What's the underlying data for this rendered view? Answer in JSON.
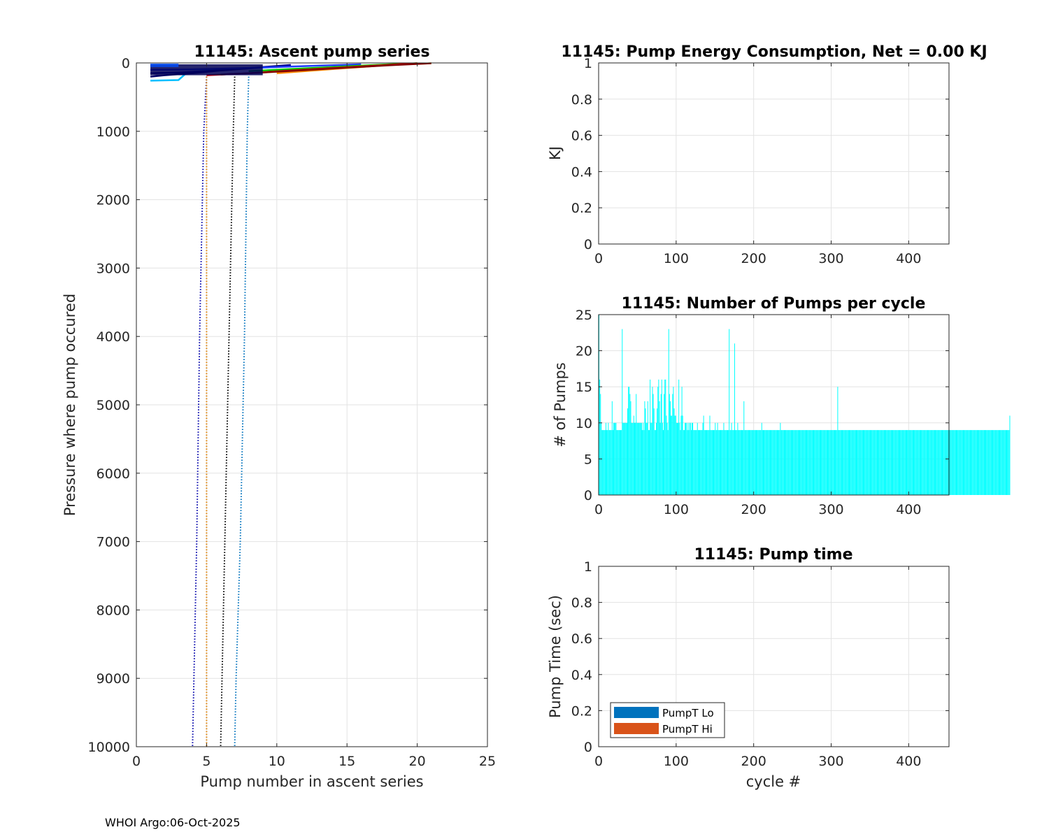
{
  "footer": "WHOI Argo:06-Oct-2025",
  "chart_data": [
    {
      "id": "ascent",
      "type": "line",
      "title": "11145: Ascent pump series",
      "xlabel": "Pump number in ascent series",
      "ylabel": "Pressure where pump occured",
      "xlim": [
        0,
        25
      ],
      "ylim": [
        0,
        10000
      ],
      "y_reversed": true,
      "xticks": [
        0,
        5,
        10,
        15,
        20,
        25
      ],
      "xtick_labels": [
        "0",
        "5",
        "10",
        "15",
        "20",
        "25"
      ],
      "yticks": [
        0,
        1000,
        2000,
        3000,
        4000,
        5000,
        6000,
        7000,
        8000,
        9000,
        10000
      ],
      "ytick_labels": [
        "0",
        "1000",
        "2000",
        "3000",
        "4000",
        "5000",
        "6000",
        "7000",
        "8000",
        "9000",
        "10000"
      ],
      "grid": true,
      "series": [
        {
          "name": "dotted-blue",
          "color": "#0000aa",
          "dash": true,
          "x": [
            5.0,
            4.8,
            4.5,
            4.3,
            4.1,
            4.0
          ],
          "y": [
            200,
            1000,
            4000,
            7000,
            9000,
            10000
          ]
        },
        {
          "name": "dotted-orange",
          "color": "#e08000",
          "dash": true,
          "x": [
            5.0,
            5.0,
            5.0
          ],
          "y": [
            200,
            5000,
            10000
          ]
        },
        {
          "name": "dotted-black",
          "color": "#000000",
          "dash": true,
          "x": [
            7.0,
            6.9,
            6.6,
            6.3,
            6.1,
            6.0
          ],
          "y": [
            200,
            1000,
            4000,
            7000,
            9000,
            10000
          ]
        },
        {
          "name": "dotted-lightblue",
          "color": "#0072bd",
          "dash": true,
          "x": [
            8.0,
            7.9,
            7.7,
            7.4,
            7.1,
            7.0
          ],
          "y": [
            200,
            1000,
            4000,
            7000,
            9000,
            10000
          ]
        },
        {
          "name": "profile-cyan",
          "color": "#00bfff",
          "dash": false,
          "x": [
            1,
            3,
            3.5,
            4,
            6,
            8,
            10
          ],
          "y": [
            260,
            250,
            160,
            130,
            100,
            80,
            60
          ]
        },
        {
          "name": "profile-navy-1",
          "color": "#000066",
          "dash": false,
          "x": [
            1,
            2,
            4,
            6,
            8,
            10
          ],
          "y": [
            200,
            180,
            150,
            110,
            80,
            50
          ]
        },
        {
          "name": "profile-navy-2",
          "color": "#00008b",
          "dash": false,
          "x": [
            1,
            3,
            5,
            7,
            9,
            11
          ],
          "y": [
            150,
            140,
            120,
            90,
            60,
            30
          ]
        },
        {
          "name": "profile-blue",
          "color": "#1e3cff",
          "dash": false,
          "x": [
            1,
            4,
            7,
            10,
            13,
            16
          ],
          "y": [
            100,
            95,
            80,
            60,
            40,
            20
          ]
        },
        {
          "name": "profile-green",
          "color": "#00c800",
          "dash": false,
          "x": [
            8,
            10,
            12,
            14,
            16,
            18,
            20
          ],
          "y": [
            120,
            100,
            80,
            60,
            40,
            20,
            5
          ]
        },
        {
          "name": "profile-yellow",
          "color": "#e6e600",
          "dash": false,
          "x": [
            9,
            11,
            13,
            15,
            17,
            19,
            21
          ],
          "y": [
            140,
            115,
            90,
            65,
            40,
            20,
            5
          ]
        },
        {
          "name": "profile-orange",
          "color": "#ff8c00",
          "dash": false,
          "x": [
            10,
            12,
            14,
            16,
            18,
            20
          ],
          "y": [
            150,
            120,
            90,
            60,
            30,
            5
          ]
        },
        {
          "name": "profile-red",
          "color": "#d20000",
          "dash": false,
          "x": [
            5,
            8,
            11,
            14,
            17,
            20
          ],
          "y": [
            180,
            150,
            110,
            75,
            40,
            5
          ]
        },
        {
          "name": "profile-darkred",
          "color": "#800000",
          "dash": false,
          "x": [
            6,
            9,
            12,
            15,
            18,
            21
          ],
          "y": [
            170,
            140,
            105,
            70,
            35,
            5
          ]
        }
      ]
    },
    {
      "id": "energy",
      "type": "line",
      "title": "11145: Pump Energy Consumption,  Net =   0.00 KJ",
      "xlabel": "",
      "ylabel": "KJ",
      "xlim": [
        0,
        452
      ],
      "ylim": [
        0,
        1
      ],
      "xticks": [
        0,
        100,
        200,
        300,
        400
      ],
      "xtick_labels": [
        "0",
        "100",
        "200",
        "300",
        "400"
      ],
      "yticks": [
        0,
        0.2,
        0.4,
        0.6,
        0.8,
        1
      ],
      "ytick_labels": [
        "0",
        "0.2",
        "0.4",
        "0.6",
        "0.8",
        "1"
      ],
      "grid": true,
      "series": []
    },
    {
      "id": "pumps",
      "type": "bar",
      "title": "11145: Number of Pumps per cycle",
      "xlabel": "",
      "ylabel": "# of Pumps",
      "xlim": [
        0,
        452
      ],
      "ylim": [
        0,
        25
      ],
      "xticks": [
        0,
        100,
        200,
        300,
        400
      ],
      "xtick_labels": [
        "0",
        "100",
        "200",
        "300",
        "400"
      ],
      "yticks": [
        0,
        5,
        10,
        15,
        20,
        25
      ],
      "ytick_labels": [
        "0",
        "5",
        "10",
        "15",
        "20",
        "25"
      ],
      "grid": true,
      "color": "#00ffff",
      "x_start": 1,
      "values": [
        25,
        16,
        14,
        10,
        9,
        9,
        9,
        9,
        9,
        10,
        9,
        9,
        10,
        9,
        9,
        9,
        9,
        13,
        9,
        10,
        10,
        10,
        10,
        9,
        9,
        9,
        9,
        9,
        9,
        9,
        23,
        10,
        10,
        10,
        10,
        10,
        10,
        12,
        15,
        15,
        14,
        13,
        10,
        10,
        10,
        11,
        10,
        10,
        14,
        10,
        10,
        10,
        10,
        10,
        10,
        10,
        9,
        10,
        9,
        13,
        12,
        10,
        10,
        13,
        9,
        9,
        16,
        10,
        10,
        15,
        14,
        12,
        9,
        9,
        10,
        12,
        15,
        16,
        13,
        10,
        14,
        16,
        10,
        9,
        14,
        16,
        16,
        11,
        10,
        9,
        23,
        14,
        13,
        11,
        11,
        14,
        15,
        12,
        11,
        11,
        10,
        10,
        10,
        16,
        10,
        9,
        11,
        15,
        11,
        9,
        9,
        10,
        10,
        10,
        9,
        10,
        9,
        10,
        10,
        9,
        10,
        10,
        9,
        9,
        9,
        9,
        9,
        10,
        9,
        9,
        9,
        9,
        9,
        9,
        10,
        11,
        9,
        9,
        9,
        9,
        9,
        9,
        9,
        11,
        9,
        9,
        9,
        9,
        9,
        9,
        10,
        9,
        9,
        10,
        9,
        9,
        9,
        9,
        9,
        9,
        9,
        10,
        9,
        9,
        9,
        9,
        9,
        9,
        23,
        9,
        9,
        10,
        9,
        9,
        9,
        21,
        9,
        9,
        9,
        10,
        9,
        9,
        9,
        9,
        9,
        9,
        9,
        13,
        9,
        9,
        9,
        9,
        9,
        9,
        9,
        9,
        9,
        9,
        9,
        9,
        9,
        9,
        9,
        9,
        9,
        9,
        9,
        9,
        9,
        9,
        10,
        9,
        9,
        9,
        9,
        9,
        9,
        9,
        9,
        9,
        9,
        9,
        9,
        9,
        9,
        9,
        9,
        9,
        9,
        9,
        9,
        9,
        9,
        9,
        10,
        9,
        9,
        9,
        9,
        9,
        9,
        9,
        9,
        9,
        9,
        9,
        9,
        9,
        9,
        9,
        9,
        9,
        9,
        9,
        9,
        9,
        9,
        9,
        9,
        9,
        9,
        9,
        9,
        9,
        9,
        9,
        9,
        9,
        9,
        9,
        9,
        9,
        9,
        9,
        9,
        9,
        9,
        9,
        9,
        9,
        9,
        9,
        9,
        9,
        9,
        9,
        9,
        9,
        9,
        9,
        9,
        9,
        9,
        9,
        9,
        9,
        9,
        9,
        9,
        9,
        9,
        9,
        9,
        9,
        9,
        9,
        9,
        9,
        15,
        9,
        9,
        9,
        9,
        9,
        9,
        9,
        9,
        9,
        9,
        9,
        9,
        9,
        9,
        9,
        9,
        9,
        9,
        9,
        9,
        9,
        9,
        9,
        9,
        9,
        9,
        9,
        9,
        9,
        9,
        9,
        9,
        9,
        9,
        9,
        9,
        9,
        9,
        9,
        9,
        9,
        9,
        9,
        9,
        9,
        9,
        9,
        9,
        9,
        9,
        9,
        9,
        9,
        9,
        9,
        9,
        9,
        9,
        9,
        9,
        9,
        9,
        9,
        9,
        9,
        9,
        9,
        9,
        9,
        9,
        9,
        9,
        9,
        9,
        9,
        9,
        9,
        9,
        9,
        9,
        9,
        9,
        9,
        9,
        9,
        9,
        9,
        9,
        9,
        9,
        9,
        9,
        9,
        9,
        9,
        9,
        9,
        9,
        9,
        9,
        9,
        9,
        9,
        9,
        9,
        9,
        9,
        9,
        9,
        9,
        9,
        9,
        9,
        9,
        9,
        9,
        9,
        9,
        9,
        9,
        9,
        9,
        9,
        9,
        9,
        9,
        9,
        9,
        9,
        9,
        9,
        9,
        9,
        9,
        9,
        9,
        9,
        9,
        9,
        9,
        9,
        9,
        9,
        9,
        9,
        9,
        9,
        9,
        9,
        9,
        9,
        9,
        9,
        9,
        9,
        9,
        9,
        9,
        9,
        9,
        9,
        9,
        9,
        9,
        9,
        9,
        9,
        9,
        9,
        9,
        9,
        9,
        9,
        9,
        9,
        9,
        9,
        9,
        9,
        9,
        9,
        9,
        9,
        9,
        9,
        9,
        9,
        9,
        9,
        9,
        9,
        9,
        9,
        9,
        9,
        9,
        9,
        9,
        9,
        9,
        9,
        9,
        9,
        9,
        9,
        9,
        9,
        9,
        9,
        9,
        9,
        9,
        9,
        9,
        9,
        9,
        9,
        9,
        9,
        9,
        9,
        11
      ]
    },
    {
      "id": "pumptime",
      "type": "bar",
      "title": "11145: Pump time",
      "xlabel": "cycle #",
      "ylabel": "Pump Time (sec)",
      "xlim": [
        0,
        452
      ],
      "ylim": [
        0,
        1
      ],
      "xticks": [
        0,
        100,
        200,
        300,
        400
      ],
      "xtick_labels": [
        "0",
        "100",
        "200",
        "300",
        "400"
      ],
      "yticks": [
        0,
        0.2,
        0.4,
        0.6,
        0.8,
        1
      ],
      "ytick_labels": [
        "0",
        "0.2",
        "0.4",
        "0.6",
        "0.8",
        "1"
      ],
      "grid": true,
      "legend": {
        "position": "bottom-left",
        "entries": [
          {
            "label": "PumpT Lo",
            "color": "#0072bd"
          },
          {
            "label": "PumpT Hi",
            "color": "#d95319"
          }
        ]
      },
      "series": []
    }
  ]
}
